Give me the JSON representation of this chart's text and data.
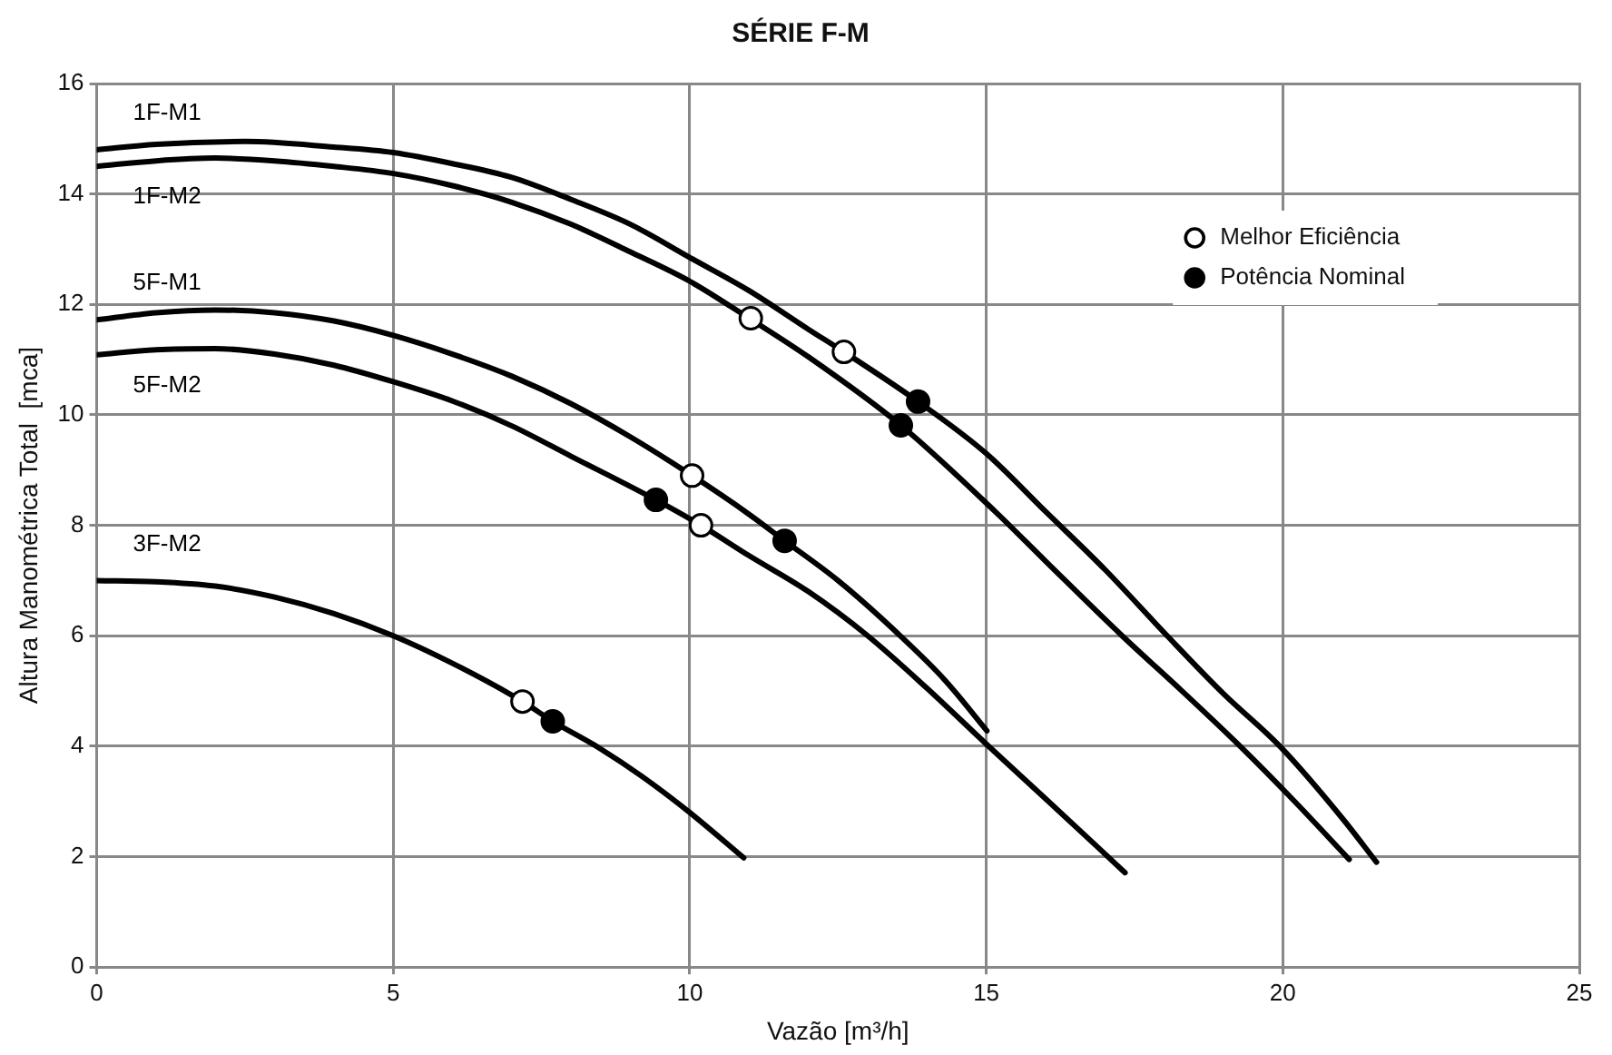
{
  "chart_data": {
    "type": "line",
    "title": "SÉRIE F-M",
    "xlabel": "Vazão [m³/h]",
    "ylabel": "Altura Manométrica Total  [mca]",
    "xlim": [
      0,
      25
    ],
    "ylim": [
      0,
      16
    ],
    "xticks": [
      0,
      5,
      10,
      15,
      20,
      25
    ],
    "yticks": [
      0,
      2,
      4,
      6,
      8,
      10,
      12,
      14,
      16
    ],
    "grid": true,
    "legend": "top right",
    "line_style": "solid",
    "series": [
      {
        "name": "1F-M1",
        "marker": "none",
        "color": "#000000",
        "x": [
          0,
          1,
          2.5,
          4,
          5,
          6,
          7,
          8,
          9,
          10,
          11,
          12,
          12.6,
          13.85,
          15,
          16,
          17,
          18.05,
          19,
          19.95,
          21,
          21.58
        ],
        "values": [
          14.8,
          14.9,
          14.95,
          14.85,
          14.75,
          14.55,
          14.3,
          13.9,
          13.45,
          12.85,
          12.25,
          11.55,
          11.14,
          10.24,
          9.3,
          8.25,
          7.2,
          6,
          4.95,
          4,
          2.7,
          1.9
        ]
      },
      {
        "name": "1F-M2",
        "marker": "none",
        "color": "#000000",
        "x": [
          0,
          1,
          2,
          3,
          4,
          5,
          6,
          7,
          8,
          9,
          10,
          11,
          12,
          13.56,
          15.15,
          16,
          17.29,
          18.3,
          19.28,
          20.2,
          21.12
        ],
        "values": [
          14.5,
          14.6,
          14.65,
          14.6,
          14.5,
          14.37,
          14.15,
          13.85,
          13.45,
          12.95,
          12.42,
          11.75,
          11.05,
          9.81,
          8.25,
          7.35,
          6,
          5,
          4,
          3,
          1.95
        ]
      },
      {
        "name": "5F-M1",
        "marker": "none",
        "color": "#000000",
        "x": [
          0,
          1,
          2,
          3,
          4,
          5,
          6,
          7,
          8,
          9,
          10.04,
          11,
          11.6,
          12.5,
          13.5,
          14.3,
          15.01
        ],
        "values": [
          11.72,
          11.85,
          11.9,
          11.85,
          11.7,
          11.44,
          11.1,
          10.7,
          10.2,
          9.6,
          8.9,
          8.2,
          7.72,
          7,
          6.05,
          5.2,
          4.28
        ]
      },
      {
        "name": "5F-M2",
        "marker": "none",
        "color": "#000000",
        "x": [
          0,
          1,
          2,
          3,
          4,
          5,
          6,
          7,
          8,
          9.43,
          10.19,
          11,
          12,
          13,
          14,
          15,
          16,
          17.34
        ],
        "values": [
          11.09,
          11.18,
          11.2,
          11.1,
          10.9,
          10.6,
          10.25,
          9.8,
          9.25,
          8.46,
          8,
          7.45,
          6.8,
          6,
          5.05,
          4.04,
          3.05,
          1.71
        ]
      },
      {
        "name": "3F-M2",
        "marker": "none",
        "color": "#000000",
        "x": [
          0,
          1,
          2,
          3,
          4,
          5,
          6,
          7.18,
          7.69,
          8.5,
          9.2,
          10,
          10.91
        ],
        "values": [
          7,
          6.98,
          6.9,
          6.7,
          6.4,
          6,
          5.5,
          4.81,
          4.45,
          3.95,
          3.45,
          2.8,
          1.98
        ]
      },
      {
        "name": "Melhor Eficiência",
        "type": "scatter",
        "marker": "circle",
        "color": "#ffffff",
        "x": [
          11.03,
          12.6,
          10.04,
          10.19,
          7.18
        ],
        "values": [
          11.75,
          11.14,
          8.9,
          8,
          4.81
        ]
      },
      {
        "name": "Potência Nominal",
        "type": "scatter",
        "marker": "circle",
        "color": "#000000",
        "x": [
          13.85,
          13.56,
          11.6,
          9.43,
          7.69
        ],
        "values": [
          10.24,
          9.81,
          7.72,
          8.46,
          4.45
        ]
      }
    ]
  }
}
